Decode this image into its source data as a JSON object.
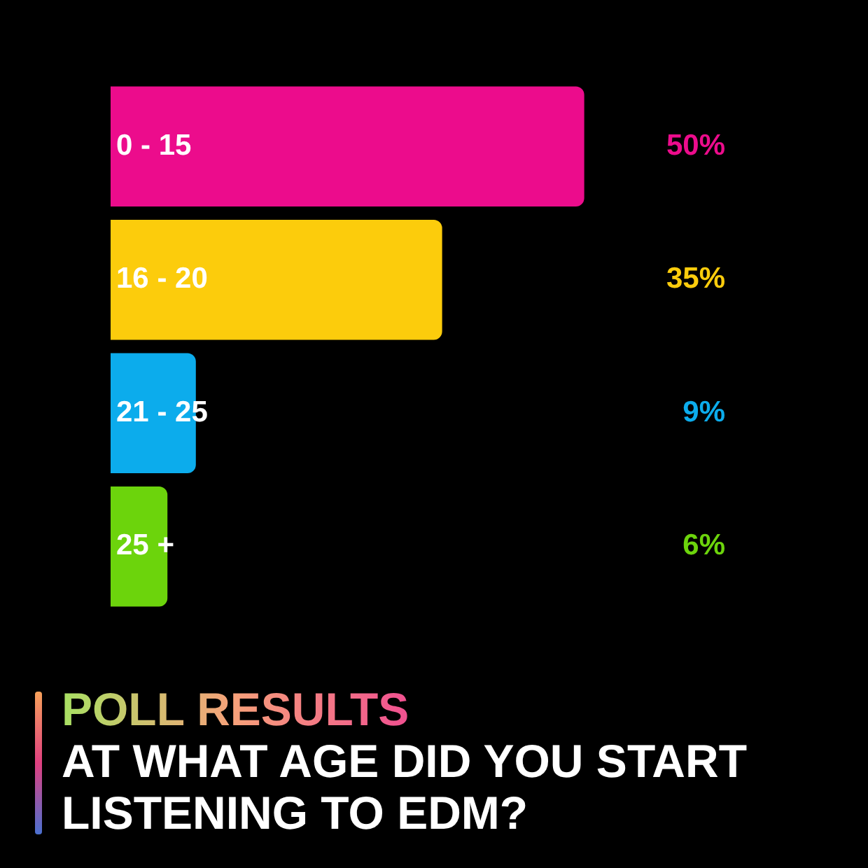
{
  "chart_data": {
    "type": "bar",
    "orientation": "horizontal",
    "title": "POLL RESULTS",
    "subtitle": "AT WHAT AGE DID YOU START LISTENING TO EDM?",
    "categories": [
      "0 - 15",
      "16 - 20",
      "21 - 25",
      "25 +"
    ],
    "values": [
      50,
      35,
      9,
      6
    ],
    "colors": [
      "#ec0c8c",
      "#fccc0c",
      "#0cacec",
      "#6cd40c"
    ],
    "value_labels": [
      "50%",
      "35%",
      "9%",
      "6%"
    ]
  }
}
